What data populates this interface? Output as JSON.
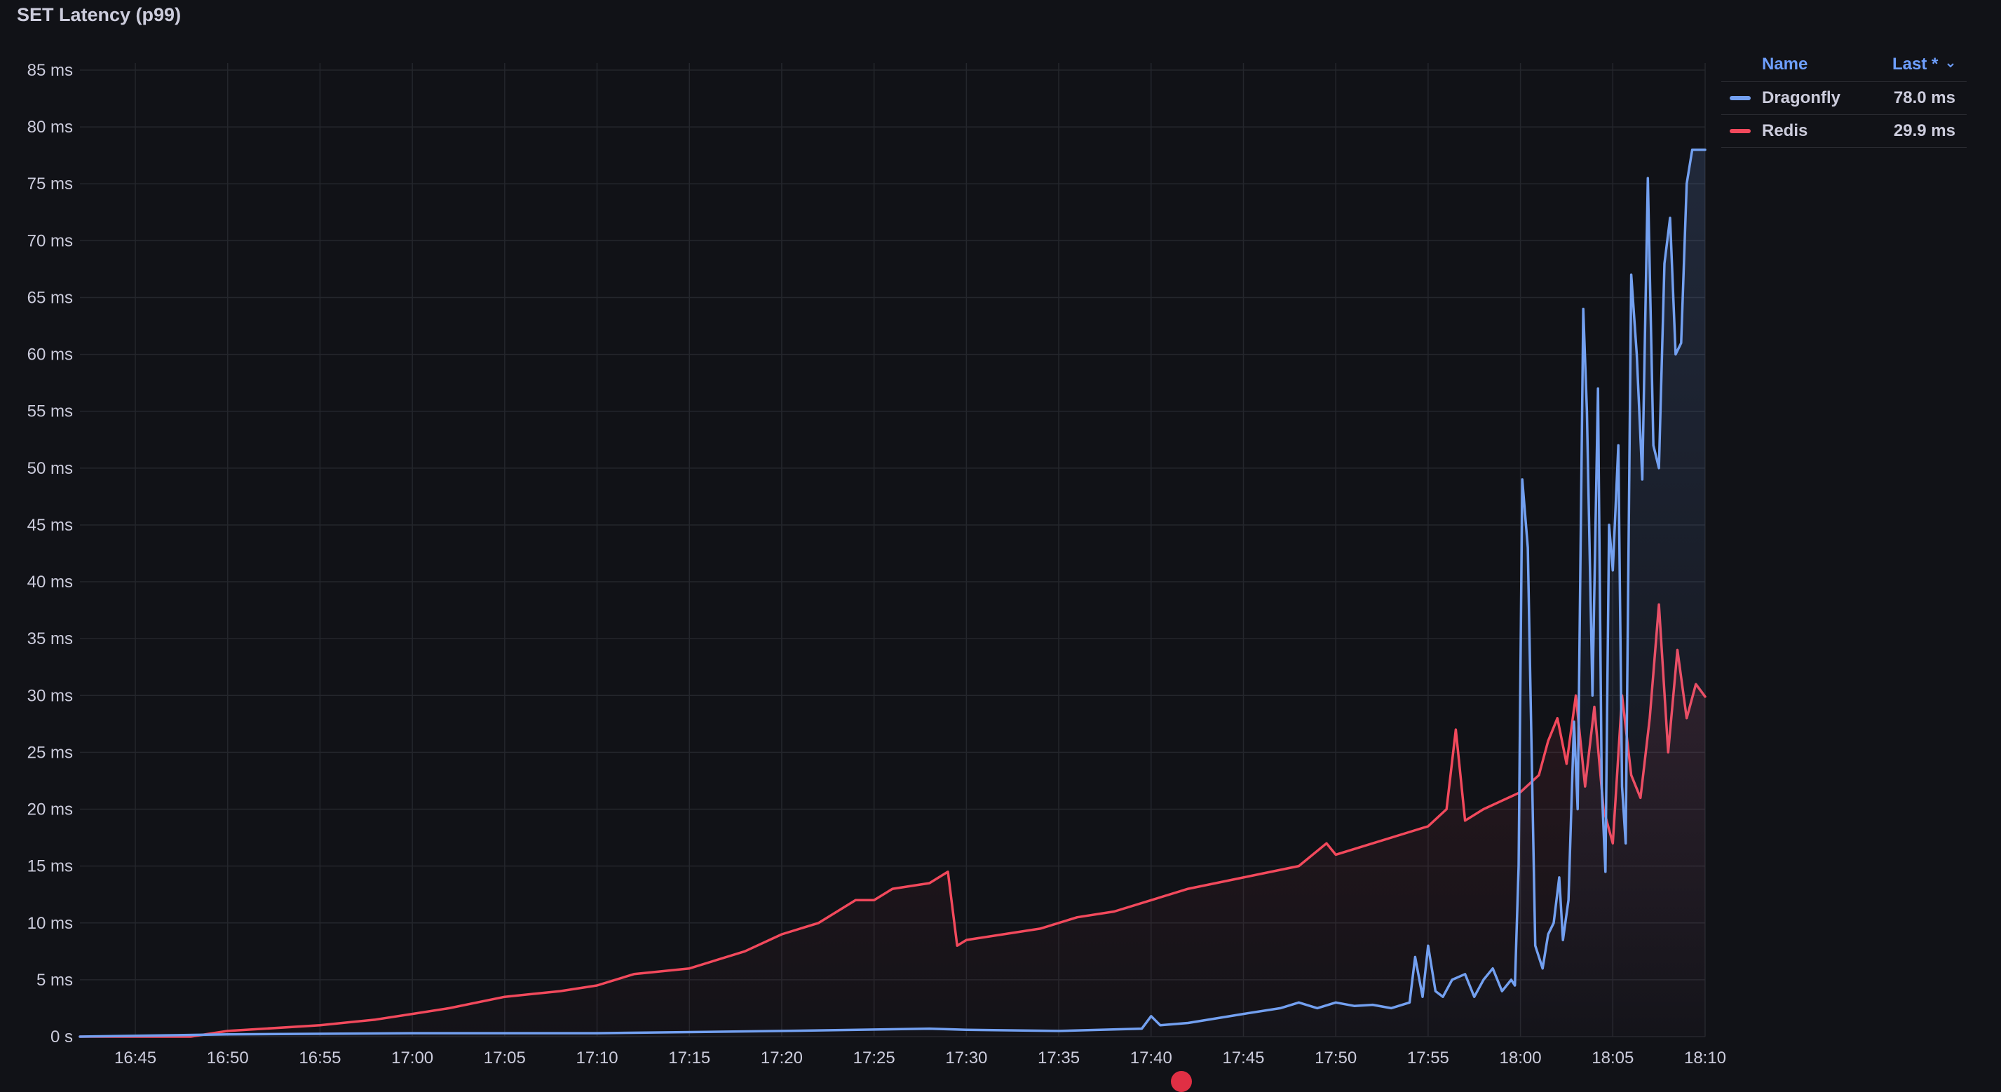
{
  "panel": {
    "title": "SET Latency (p99)"
  },
  "legend": {
    "name_header": "Name",
    "last_header": "Last *",
    "sort_icon": "chevron-down-icon",
    "rows": [
      {
        "name": "Dragonfly",
        "last": "78.0 ms",
        "color": "#73a0f0"
      },
      {
        "name": "Redis",
        "last": "29.9 ms",
        "color": "#f2495c"
      }
    ]
  },
  "chart_data": {
    "type": "line",
    "title": "SET Latency (p99)",
    "xlabel": "",
    "ylabel": "",
    "grid": true,
    "legend_placement": "right",
    "x_ticks": [
      "16:45",
      "16:50",
      "16:55",
      "17:00",
      "17:05",
      "17:10",
      "17:15",
      "17:20",
      "17:25",
      "17:30",
      "17:35",
      "17:40",
      "17:45",
      "17:50",
      "17:55",
      "18:00",
      "18:05",
      "18:10"
    ],
    "y_ticks": [
      "0 s",
      "5 ms",
      "10 ms",
      "15 ms",
      "20 ms",
      "25 ms",
      "30 ms",
      "35 ms",
      "40 ms",
      "45 ms",
      "50 ms",
      "55 ms",
      "60 ms",
      "65 ms",
      "70 ms",
      "75 ms",
      "80 ms",
      "85 ms"
    ],
    "x_range": [
      "16:42",
      "18:10"
    ],
    "y_range_ms": [
      0,
      85
    ],
    "series": [
      {
        "name": "Dragonfly",
        "color": "#73a0f0",
        "x": [
          "16:42",
          "16:50",
          "17:00",
          "17:10",
          "17:20",
          "17:28",
          "17:30",
          "17:35",
          "17:39.5",
          "17:40",
          "17:40.5",
          "17:42",
          "17:45",
          "17:47",
          "17:48",
          "17:49",
          "17:50",
          "17:51",
          "17:52",
          "17:53",
          "17:54",
          "17:54.3",
          "17:54.7",
          "17:55",
          "17:55.4",
          "17:55.8",
          "17:56.3",
          "17:57",
          "17:57.5",
          "17:58",
          "17:58.5",
          "17:59",
          "17:59.5",
          "17:59.7",
          "17:59.9",
          "18:00.1",
          "18:00.4",
          "18:00.8",
          "18:01.2",
          "18:01.5",
          "18:01.8",
          "18:02.1",
          "18:02.3",
          "18:02.6",
          "18:02.9",
          "18:03.1",
          "18:03.4",
          "18:03.6",
          "18:03.9",
          "18:04.2",
          "18:04.4",
          "18:04.6",
          "18:04.8",
          "18:05",
          "18:05.3",
          "18:05.5",
          "18:05.7",
          "18:06",
          "18:06.3",
          "18:06.6",
          "18:06.9",
          "18:07.2",
          "18:07.5",
          "18:07.8",
          "18:08.1",
          "18:08.4",
          "18:08.7",
          "18:09",
          "18:09.3",
          "18:09.6",
          "18:09.9",
          "18:10"
        ],
        "y": [
          0,
          0.2,
          0.3,
          0.3,
          0.5,
          0.7,
          0.6,
          0.5,
          0.7,
          1.8,
          1,
          1.2,
          2,
          2.5,
          3,
          2.5,
          3,
          2.7,
          2.8,
          2.5,
          3,
          7,
          3.5,
          8,
          4,
          3.5,
          5,
          5.5,
          3.5,
          5,
          6,
          4,
          5,
          4.5,
          15,
          49,
          43,
          8,
          6,
          9,
          10,
          14,
          8.5,
          12,
          27.7,
          20,
          64,
          55,
          30,
          57,
          22,
          14.5,
          45,
          41,
          52,
          22,
          17,
          67,
          60,
          49,
          75.5,
          52,
          50,
          68,
          72,
          60,
          61,
          75,
          78,
          78,
          78,
          78
        ]
      },
      {
        "name": "Redis",
        "color": "#f2495c",
        "x": [
          "16:42",
          "16:48",
          "16:50",
          "16:55",
          "16:58",
          "17:00",
          "17:02",
          "17:05",
          "17:08",
          "17:10",
          "17:12",
          "17:15",
          "17:18",
          "17:20",
          "17:22",
          "17:24",
          "17:25",
          "17:26",
          "17:28",
          "17:29",
          "17:29.5",
          "17:30",
          "17:32",
          "17:34",
          "17:36",
          "17:38",
          "17:40",
          "17:42",
          "17:45",
          "17:48",
          "17:49.5",
          "17:50",
          "17:52",
          "17:54",
          "17:55",
          "17:56",
          "17:56.5",
          "17:57",
          "17:58",
          "18:00",
          "18:01",
          "18:01.5",
          "18:02",
          "18:02.5",
          "18:03",
          "18:03.5",
          "18:04",
          "18:04.5",
          "18:05",
          "18:05.5",
          "18:06",
          "18:06.5",
          "18:07",
          "18:07.5",
          "18:08",
          "18:08.5",
          "18:09",
          "18:09.5",
          "18:10"
        ],
        "y": [
          0,
          0,
          0.5,
          1,
          1.5,
          2,
          2.5,
          3.5,
          4,
          4.5,
          5.5,
          6,
          7.5,
          9,
          10,
          12,
          12,
          13,
          13.5,
          14.5,
          8,
          8.5,
          9,
          9.5,
          10.5,
          11,
          12,
          13,
          14,
          15,
          17,
          16,
          17,
          18,
          18.5,
          20,
          27,
          19,
          20,
          21.5,
          23,
          26,
          28,
          24,
          30,
          22,
          29,
          20,
          17,
          30,
          23,
          21,
          28,
          38,
          25,
          34,
          28,
          31,
          29.9
        ]
      }
    ]
  }
}
